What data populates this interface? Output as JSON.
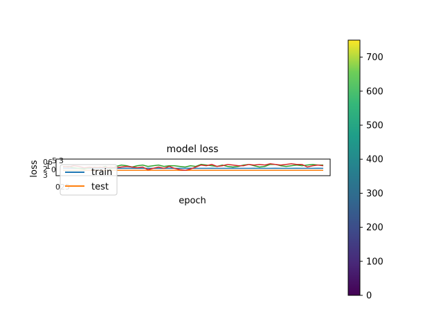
{
  "chart_data": {
    "type": "line",
    "title": "model loss",
    "xlabel": "epoch",
    "ylabel": "loss",
    "grid": false,
    "legend": {
      "placement": "lower-left",
      "entries": [
        "train",
        "test"
      ]
    },
    "series": [
      {
        "name": "train",
        "color": "#1f77b4",
        "values": [
          0.6,
          0.61,
          0.6,
          0.61,
          0.6,
          0.6,
          0.61,
          0.6,
          0.6,
          0.61,
          0.6,
          0.6,
          0.61,
          0.6,
          0.6,
          0.6,
          0.61,
          0.6,
          0.6,
          0.6,
          0.61,
          0.6,
          0.6,
          0.6,
          0.61,
          0.6,
          0.6,
          0.6,
          0.61,
          0.6,
          0.6,
          0.6,
          0.61,
          0.6,
          0.6,
          0.6,
          0.61,
          0.6,
          0.6,
          0.6,
          0.61,
          0.6,
          0.6,
          0.6,
          0.61,
          0.6,
          0.6,
          0.6,
          0.61,
          0.6
        ]
      },
      {
        "name": "test",
        "color": "#ff7f0e",
        "values": [
          0.3,
          0.31,
          0.3,
          0.3,
          0.31,
          0.3,
          0.3,
          0.31,
          0.3,
          0.3,
          0.31,
          0.3,
          0.3,
          0.31,
          0.3,
          0.3,
          0.31,
          0.3,
          0.3,
          0.31,
          0.3,
          0.3,
          0.31,
          0.3,
          0.3,
          0.31,
          0.3,
          0.3,
          0.31,
          0.3,
          0.3,
          0.31,
          0.3,
          0.3,
          0.31,
          0.3,
          0.3,
          0.31,
          0.3,
          0.3,
          0.31,
          0.3,
          0.3,
          0.31,
          0.3,
          0.3,
          0.31,
          0.3,
          0.3,
          0.31
        ]
      },
      {
        "name": "",
        "color": "#2ca02c",
        "values": [
          0.8,
          0.9,
          0.7,
          0.6,
          0.5,
          0.7,
          0.8,
          0.7,
          0.9,
          0.5,
          0.9,
          1.1,
          1.0,
          0.8,
          1.0,
          1.1,
          0.9,
          1.0,
          1.1,
          0.9,
          1.0,
          1.0,
          0.9,
          0.8,
          1.0,
          0.9,
          1.2,
          1.1,
          1.0,
          0.9,
          1.1,
          0.9,
          0.8,
          0.9,
          1.1,
          1.2,
          1.0,
          0.8,
          0.9,
          1.2,
          1.2,
          1.0,
          0.9,
          1.0,
          1.1,
          1.0,
          1.1,
          1.2,
          1.1,
          1.1
        ]
      },
      {
        "name": "",
        "color": "#d62728",
        "values": [
          0.9,
          0.8,
          1.0,
          0.9,
          0.7,
          0.8,
          0.7,
          0.8,
          0.7,
          0.8,
          0.7,
          0.8,
          0.9,
          0.8,
          0.7,
          0.8,
          0.4,
          0.6,
          0.8,
          0.6,
          0.9,
          0.6,
          0.4,
          0.3,
          0.5,
          0.8,
          1.1,
          1.0,
          1.2,
          0.9,
          1.0,
          1.2,
          1.1,
          1.0,
          1.0,
          1.2,
          1.1,
          1.2,
          1.1,
          1.3,
          1.2,
          1.1,
          1.2,
          1.3,
          1.2,
          1.2,
          0.8,
          1.0,
          1.1,
          1.0
        ]
      }
    ],
    "xlim": [
      0,
      49
    ],
    "ylim": [
      -0.5,
      2.0
    ],
    "overlapping_tick_text": [
      "06",
      "5",
      "3",
      "2",
      "1",
      "3",
      "0",
      "025"
    ],
    "colorbar": {
      "colormap": "viridis",
      "range": [
        0,
        750
      ],
      "ticks": [
        0,
        100,
        200,
        300,
        400,
        500,
        600,
        700
      ]
    }
  }
}
